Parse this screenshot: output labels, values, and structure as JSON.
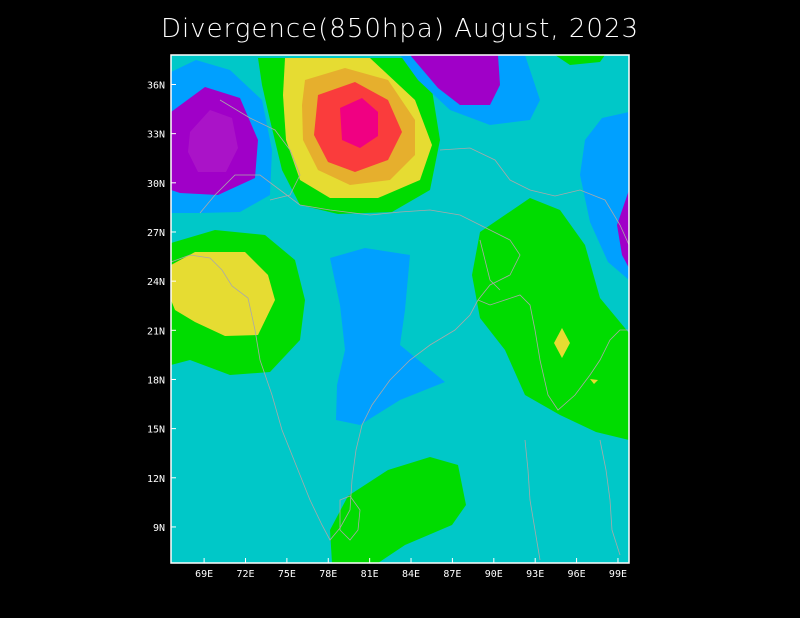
{
  "title": "Divergence(850hpa) August, 2023",
  "axes": {
    "lon_labels": [
      "69E",
      "72E",
      "75E",
      "78E",
      "81E",
      "84E",
      "87E",
      "90E",
      "93E",
      "96E",
      "99E"
    ],
    "lat_labels": [
      "9N",
      "12N",
      "15N",
      "18N",
      "21N",
      "24N",
      "27N",
      "30N",
      "33N",
      "36N"
    ],
    "lon_range": [
      66.6,
      99.8
    ],
    "lat_range": [
      6.8,
      37.8
    ]
  },
  "colors": {
    "background": "#000000",
    "frame": "#ffffff",
    "coastline": "#a9a9a9",
    "level_colors": [
      "#a000c8",
      "#00a0ff",
      "#00c8c8",
      "#00dc00",
      "#e6dc32",
      "#e6af2d",
      "#fa3c3c",
      "#f00082"
    ]
  }
}
